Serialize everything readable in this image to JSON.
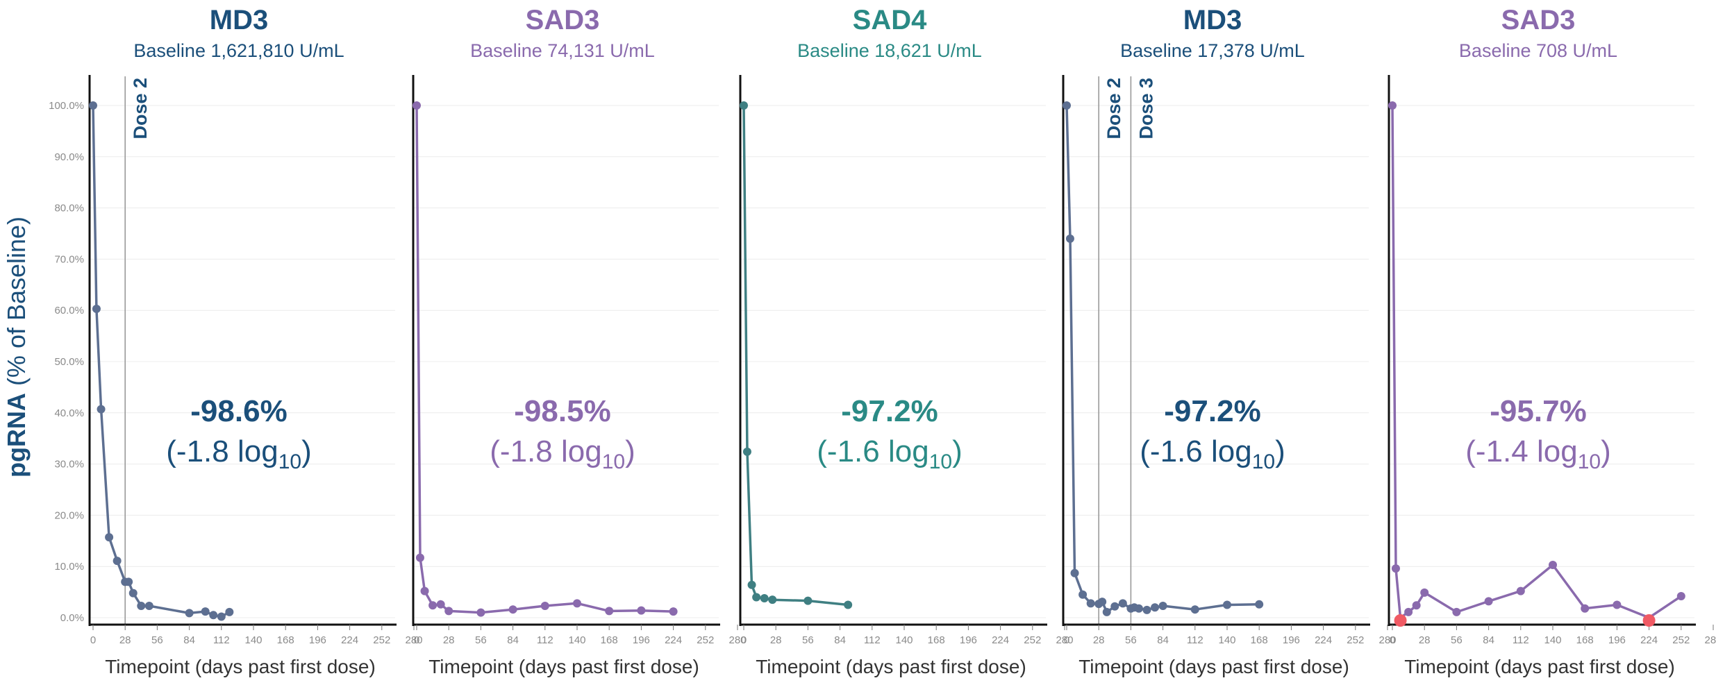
{
  "figure": {
    "ylabel_bold": "pgRNA",
    "ylabel_rest": " (% of Baseline)",
    "yticks": [
      "0.0%",
      "10.0%",
      "20.0%",
      "30.0%",
      "40.0%",
      "50.0%",
      "60.0%",
      "70.0%",
      "80.0%",
      "90.0%",
      "100.0%"
    ],
    "xticks": [
      "0",
      "28",
      "56",
      "84",
      "112",
      "140",
      "168",
      "196",
      "224",
      "252",
      "280"
    ],
    "xlabel": "Timepoint (days past first dose)",
    "colors": {
      "navy": "#1b4f7a",
      "purple": "#8a6aad",
      "teal": "#2a8a85",
      "line_slate": "#5d6f91",
      "line_purple": "#8a6aad",
      "line_teal": "#3f7f82",
      "marker_red": "#f05a64",
      "dose_line": "#9a9a9a"
    }
  },
  "chart_data": [
    {
      "type": "line",
      "title": "MD3",
      "subtitle": "Baseline 1,621,810 U/mL",
      "title_color": "navy",
      "line_color": "line_slate",
      "xlim": [
        0,
        280
      ],
      "ylim": [
        0,
        100
      ],
      "grid": true,
      "reduction_pct": "-98.6%",
      "reduction_log_prefix": "(-1.8 log",
      "reduction_log_sub": "10",
      "reduction_log_suffix": ")",
      "dose_lines": [
        {
          "day": 28,
          "label": "Dose 2"
        }
      ],
      "x": [
        0,
        3,
        7,
        14,
        21,
        28,
        31,
        35,
        42,
        49,
        84,
        98,
        105,
        112,
        119
      ],
      "y": [
        100.0,
        60.3,
        40.7,
        15.7,
        11.1,
        7.0,
        7.0,
        4.8,
        2.3,
        2.3,
        0.9,
        1.2,
        0.5,
        0.2,
        1.1
      ],
      "highlight": []
    },
    {
      "type": "line",
      "title": "SAD3",
      "subtitle": "Baseline 74,131 U/mL",
      "title_color": "purple",
      "line_color": "line_purple",
      "xlim": [
        0,
        280
      ],
      "ylim": [
        0,
        100
      ],
      "grid": true,
      "reduction_pct": "-98.5%",
      "reduction_log_prefix": "(-1.8 log",
      "reduction_log_sub": "10",
      "reduction_log_suffix": ")",
      "dose_lines": [],
      "x": [
        0,
        3,
        7,
        14,
        21,
        28,
        56,
        84,
        112,
        140,
        168,
        196,
        224
      ],
      "y": [
        100.0,
        11.7,
        5.2,
        2.4,
        2.6,
        1.3,
        1.0,
        1.6,
        2.3,
        2.8,
        1.3,
        1.4,
        1.2
      ],
      "highlight": []
    },
    {
      "type": "line",
      "title": "SAD4",
      "subtitle": "Baseline 18,621 U/mL",
      "title_color": "teal",
      "line_color": "line_teal",
      "xlim": [
        0,
        280
      ],
      "ylim": [
        0,
        100
      ],
      "grid": true,
      "reduction_pct": "-97.2%",
      "reduction_log_prefix": "(-1.6 log",
      "reduction_log_sub": "10",
      "reduction_log_suffix": ")",
      "dose_lines": [],
      "x": [
        0,
        3,
        7,
        11,
        18,
        25,
        56,
        91
      ],
      "y": [
        100.0,
        32.4,
        6.4,
        4.0,
        3.8,
        3.5,
        3.3,
        2.5
      ],
      "highlight": []
    },
    {
      "type": "line",
      "title": "MD3",
      "subtitle": "Baseline 17,378 U/mL",
      "title_color": "navy",
      "line_color": "line_slate",
      "xlim": [
        0,
        280
      ],
      "ylim": [
        0,
        100
      ],
      "grid": true,
      "reduction_pct": "-97.2%",
      "reduction_log_prefix": "(-1.6 log",
      "reduction_log_sub": "10",
      "reduction_log_suffix": ")",
      "dose_lines": [
        {
          "day": 28,
          "label": "Dose 2"
        },
        {
          "day": 56,
          "label": "Dose 3"
        }
      ],
      "x": [
        0,
        3,
        7,
        14,
        21,
        28,
        31,
        35,
        42,
        49,
        56,
        59,
        63,
        70,
        77,
        84,
        112,
        140,
        168
      ],
      "y": [
        100.0,
        74.0,
        8.7,
        4.5,
        2.8,
        2.7,
        3.1,
        1.1,
        2.2,
        2.8,
        1.8,
        2.0,
        1.8,
        1.5,
        2.0,
        2.3,
        1.6,
        2.5,
        2.6
      ],
      "highlight": []
    },
    {
      "type": "line",
      "title": "SAD3",
      "subtitle": "Baseline 708 U/mL",
      "title_color": "purple",
      "line_color": "line_purple",
      "xlim": [
        0,
        280
      ],
      "ylim": [
        0,
        100
      ],
      "grid": true,
      "reduction_pct": "-95.7%",
      "reduction_log_prefix": "(-1.4 log",
      "reduction_log_sub": "10",
      "reduction_log_suffix": ")",
      "dose_lines": [],
      "x": [
        0,
        3,
        7,
        14,
        21,
        28,
        56,
        84,
        112,
        140,
        168,
        196,
        224,
        252
      ],
      "y": [
        100.0,
        9.6,
        0.0,
        1.1,
        2.4,
        4.9,
        1.1,
        3.2,
        5.2,
        10.3,
        1.8,
        2.5,
        0.0,
        4.2
      ],
      "highlight": [
        2,
        12
      ]
    }
  ]
}
